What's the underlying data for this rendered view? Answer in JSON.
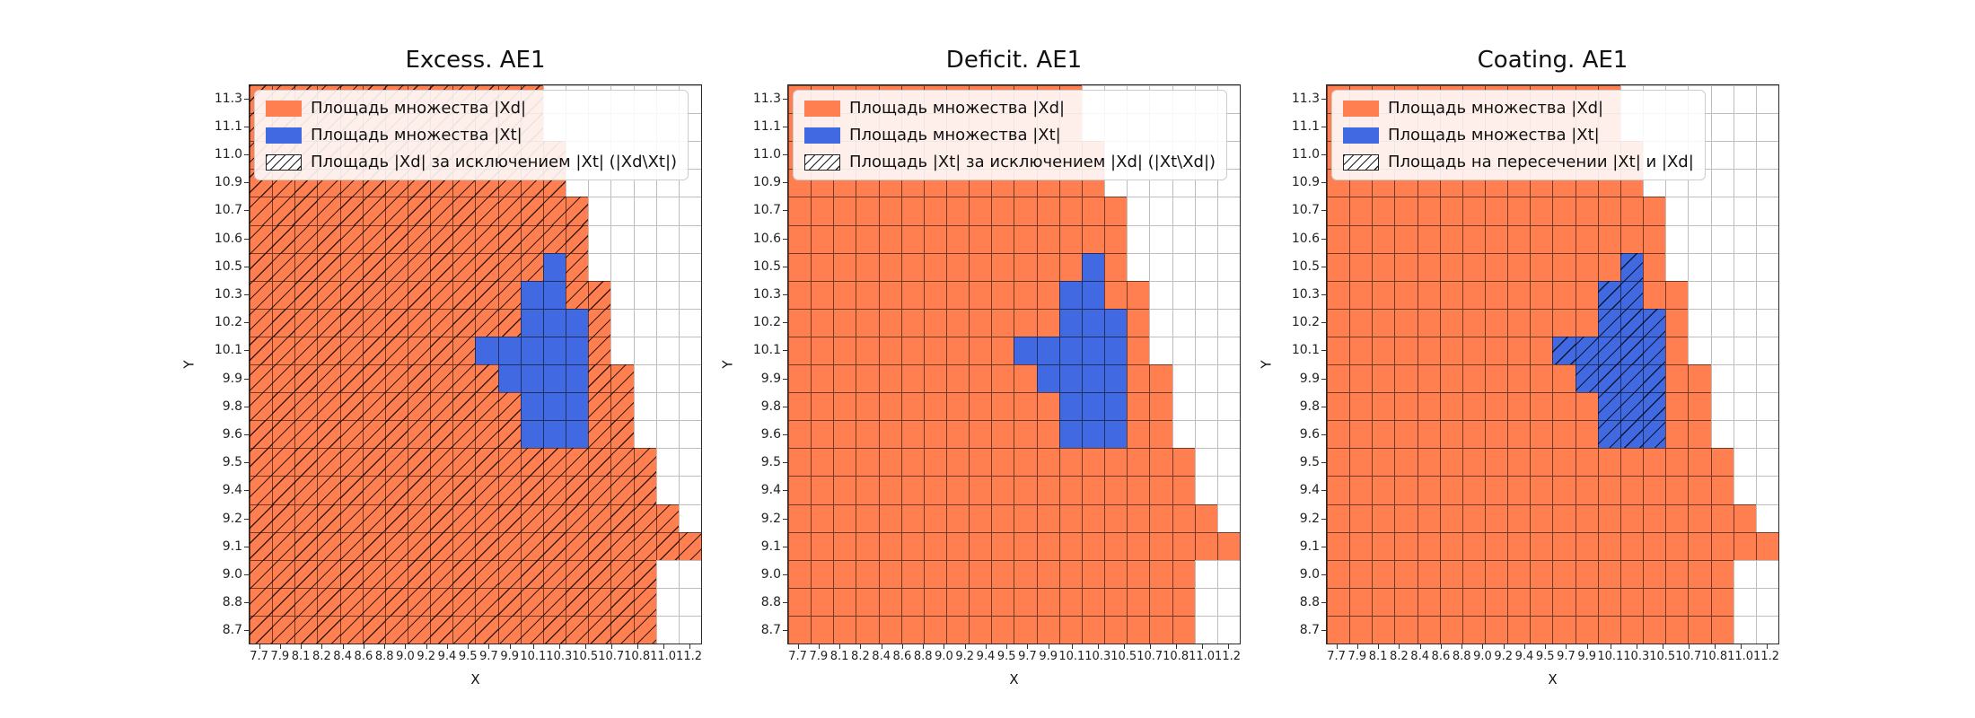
{
  "figure": {
    "background": "#ffffff"
  },
  "chart_data": {
    "type": "heatmap",
    "description": "Three side-by-side grid plots comparing set Xd (orange region) and set Xt (blue region) on an X/Y grid; hatching marks the set operation named in each legend.",
    "colors": {
      "set_xd": "#ff7f50",
      "set_xt": "#4169e1",
      "empty": "#ffffff",
      "hatch_line": "#000000"
    },
    "xlabel": "X",
    "ylabel": "Y",
    "x_ticks": [
      "7.7",
      "7.9",
      "8.1",
      "8.2",
      "8.4",
      "8.6",
      "8.8",
      "9.0",
      "9.2",
      "9.4",
      "9.5",
      "9.7",
      "9.9",
      "10.1",
      "10.3",
      "10.5",
      "10.7",
      "10.8",
      "11.0",
      "11.2"
    ],
    "y_ticks": [
      "11.3",
      "11.1",
      "11.0",
      "10.9",
      "10.7",
      "10.6",
      "10.5",
      "10.3",
      "10.2",
      "10.1",
      "9.9",
      "9.8",
      "9.6",
      "9.5",
      "9.4",
      "9.2",
      "9.1",
      "9.0",
      "8.8",
      "8.7"
    ],
    "cell_codes": {
      "O": "set Xd (orange)",
      "B": "set Xt (blue)",
      ".": "empty"
    },
    "grid_rows": [
      "OOOOOOOOOOOOO.......",
      "OOOOOOOOOOOOO.......",
      "OOOOOOOOOOOOOO......",
      "OOOOOOOOOOOOOO......",
      "OOOOOOOOOOOOOOO.....",
      "OOOOOOOOOOOOOOO.....",
      "OOOOOOOOOOOOOBO.....",
      "OOOOOOOOOOOOBBOO....",
      "OOOOOOOOOOOOBBBO....",
      "OOOOOOOOOOBBBBBO....",
      "OOOOOOOOOOOBBBBOO...",
      "OOOOOOOOOOOOBBBOO...",
      "OOOOOOOOOOOOBBBOO...",
      "OOOOOOOOOOOOOOOOOO..",
      "OOOOOOOOOOOOOOOOOO..",
      "OOOOOOOOOOOOOOOOOOO.",
      "OOOOOOOOOOOOOOOOOOOO",
      "OOOOOOOOOOOOOOOOOO..",
      "OOOOOOOOOOOOOOOOOO..",
      "OOOOOOOOOOOOOOOOOO.."
    ],
    "plots": [
      {
        "title": "Excess. AE1",
        "hatch": "xd_minus_xt",
        "legend": [
          {
            "swatch": "xd",
            "label": "Площадь множества |Xd|"
          },
          {
            "swatch": "xt",
            "label": "Площадь множества  |Xt|"
          },
          {
            "swatch": "hatch",
            "label": "Площадь |Xd| за исключением |Xt| (|Xd\\Xt|)"
          }
        ]
      },
      {
        "title": "Deficit. AE1",
        "hatch": "none",
        "legend": [
          {
            "swatch": "xd",
            "label": "Площадь множества |Xd|"
          },
          {
            "swatch": "xt",
            "label": "Площадь множества  |Xt|"
          },
          {
            "swatch": "hatch",
            "label": "Площадь |Xt| за исключением |Xd| (|Xt\\Xd|)"
          }
        ]
      },
      {
        "title": "Coating. AE1",
        "hatch": "intersection",
        "legend": [
          {
            "swatch": "xd",
            "label": "Площадь множества |Xd|"
          },
          {
            "swatch": "xt",
            "label": "Площадь множества  |Xt|"
          },
          {
            "swatch": "hatch",
            "label": "Площадь на пересечении |Xt| и |Xd|"
          }
        ]
      }
    ]
  }
}
